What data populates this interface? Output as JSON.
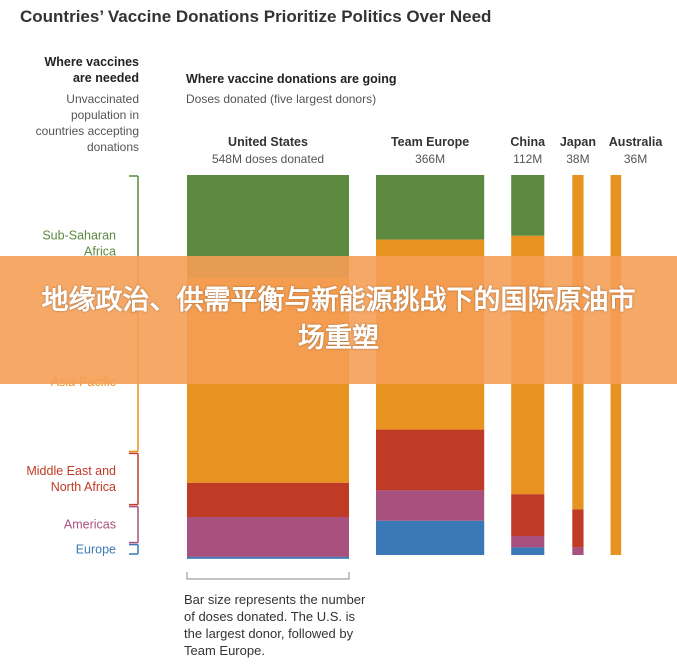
{
  "title": "Countries’ Vaccine Donations Prioritize Politics Over Need",
  "left_header": {
    "title_lines": [
      "Where vaccines",
      "are needed"
    ],
    "sub_lines": [
      "Unvaccinated",
      "population in",
      "countries accepting",
      "donations"
    ]
  },
  "right_header": {
    "title": "Where vaccine donations are going",
    "sub": "Doses donated (five largest donors)"
  },
  "note_lines": [
    "Bar size represents the number",
    "of doses donated. The U.S. is",
    "the largest donor, followed by",
    "Team Europe."
  ],
  "banner_text": "地缘政治、供需平衡与新能源挑战下的国际原油市场重塑",
  "colors": {
    "Sub-Saharan Africa": "#5b8a40",
    "Asia-Pacific": "#e8921f",
    "Middle East and North Africa": "#c03b25",
    "Americas": "#a8517e",
    "Europe": "#3a79b5"
  },
  "chart_data": {
    "type": "bar",
    "stacked": true,
    "unit": "million doses",
    "regions": [
      {
        "name": "Sub-Saharan Africa",
        "label_lines": [
          "Sub-Saharan",
          "Africa"
        ],
        "need_share": 0.36
      },
      {
        "name": "Asia-Pacific",
        "label_lines": [
          "Asia-Pacific"
        ],
        "need_share": 0.37
      },
      {
        "name": "Middle East and North Africa",
        "label_lines": [
          "Middle East and",
          "North Africa"
        ],
        "need_share": 0.14
      },
      {
        "name": "Americas",
        "label_lines": [
          "Americas"
        ],
        "need_share": 0.1
      },
      {
        "name": "Europe",
        "label_lines": [
          "Europe"
        ],
        "need_share": 0.03
      }
    ],
    "donors": [
      {
        "name": "United States",
        "total_label": "548M doses donated",
        "total": 548,
        "shares": [
          0.27,
          0.54,
          0.09,
          0.105,
          0.005
        ]
      },
      {
        "name": "Team Europe",
        "total_label": "366M",
        "total": 366,
        "shares": [
          0.17,
          0.5,
          0.16,
          0.08,
          0.09
        ]
      },
      {
        "name": "China",
        "total_label": "112M",
        "total": 112,
        "shares": [
          0.16,
          0.68,
          0.11,
          0.03,
          0.02
        ]
      },
      {
        "name": "Japan",
        "total_label": "38M",
        "total": 38,
        "shares": [
          0.0,
          0.88,
          0.1,
          0.02,
          0.0
        ]
      },
      {
        "name": "Australia",
        "total_label": "36M",
        "total": 36,
        "shares": [
          0.0,
          1.0,
          0.0,
          0.0,
          0.0
        ]
      }
    ]
  }
}
